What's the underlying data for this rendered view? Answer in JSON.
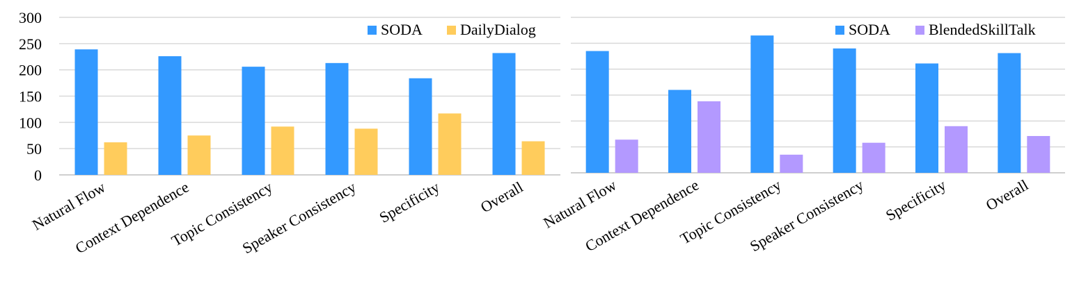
{
  "chart_data": [
    {
      "type": "bar",
      "title": "",
      "xlabel": "",
      "ylabel": "",
      "ylim": [
        0,
        300
      ],
      "yticks": [
        0,
        50,
        100,
        150,
        200,
        250,
        300
      ],
      "grid": true,
      "legend": "top-right",
      "categories": [
        "Natural Flow",
        "Context Dependence",
        "Topic Consistency",
        "Speaker Consistency",
        "Specificity",
        "Overall"
      ],
      "series": [
        {
          "name": "SODA",
          "color": "#3399ff",
          "values": [
            239,
            226,
            206,
            213,
            184,
            232
          ]
        },
        {
          "name": "DailyDialog",
          "color": "#ffcc5c",
          "values": [
            62,
            75,
            92,
            88,
            117,
            64
          ]
        }
      ]
    },
    {
      "type": "bar",
      "title": "",
      "xlabel": "",
      "ylabel": "",
      "ylim": [
        0,
        300
      ],
      "grid": true,
      "legend": "top-right",
      "categories": [
        "Natural Flow",
        "Context Dependence",
        "Topic Consistency",
        "Speaker Consistency",
        "Specificity",
        "Overall"
      ],
      "series": [
        {
          "name": "SODA",
          "color": "#3399ff",
          "values": [
            235,
            160,
            265,
            240,
            211,
            231
          ]
        },
        {
          "name": "BlendedSkillTalk",
          "color": "#b399ff",
          "values": [
            64,
            138,
            35,
            58,
            90,
            71
          ]
        }
      ]
    }
  ]
}
